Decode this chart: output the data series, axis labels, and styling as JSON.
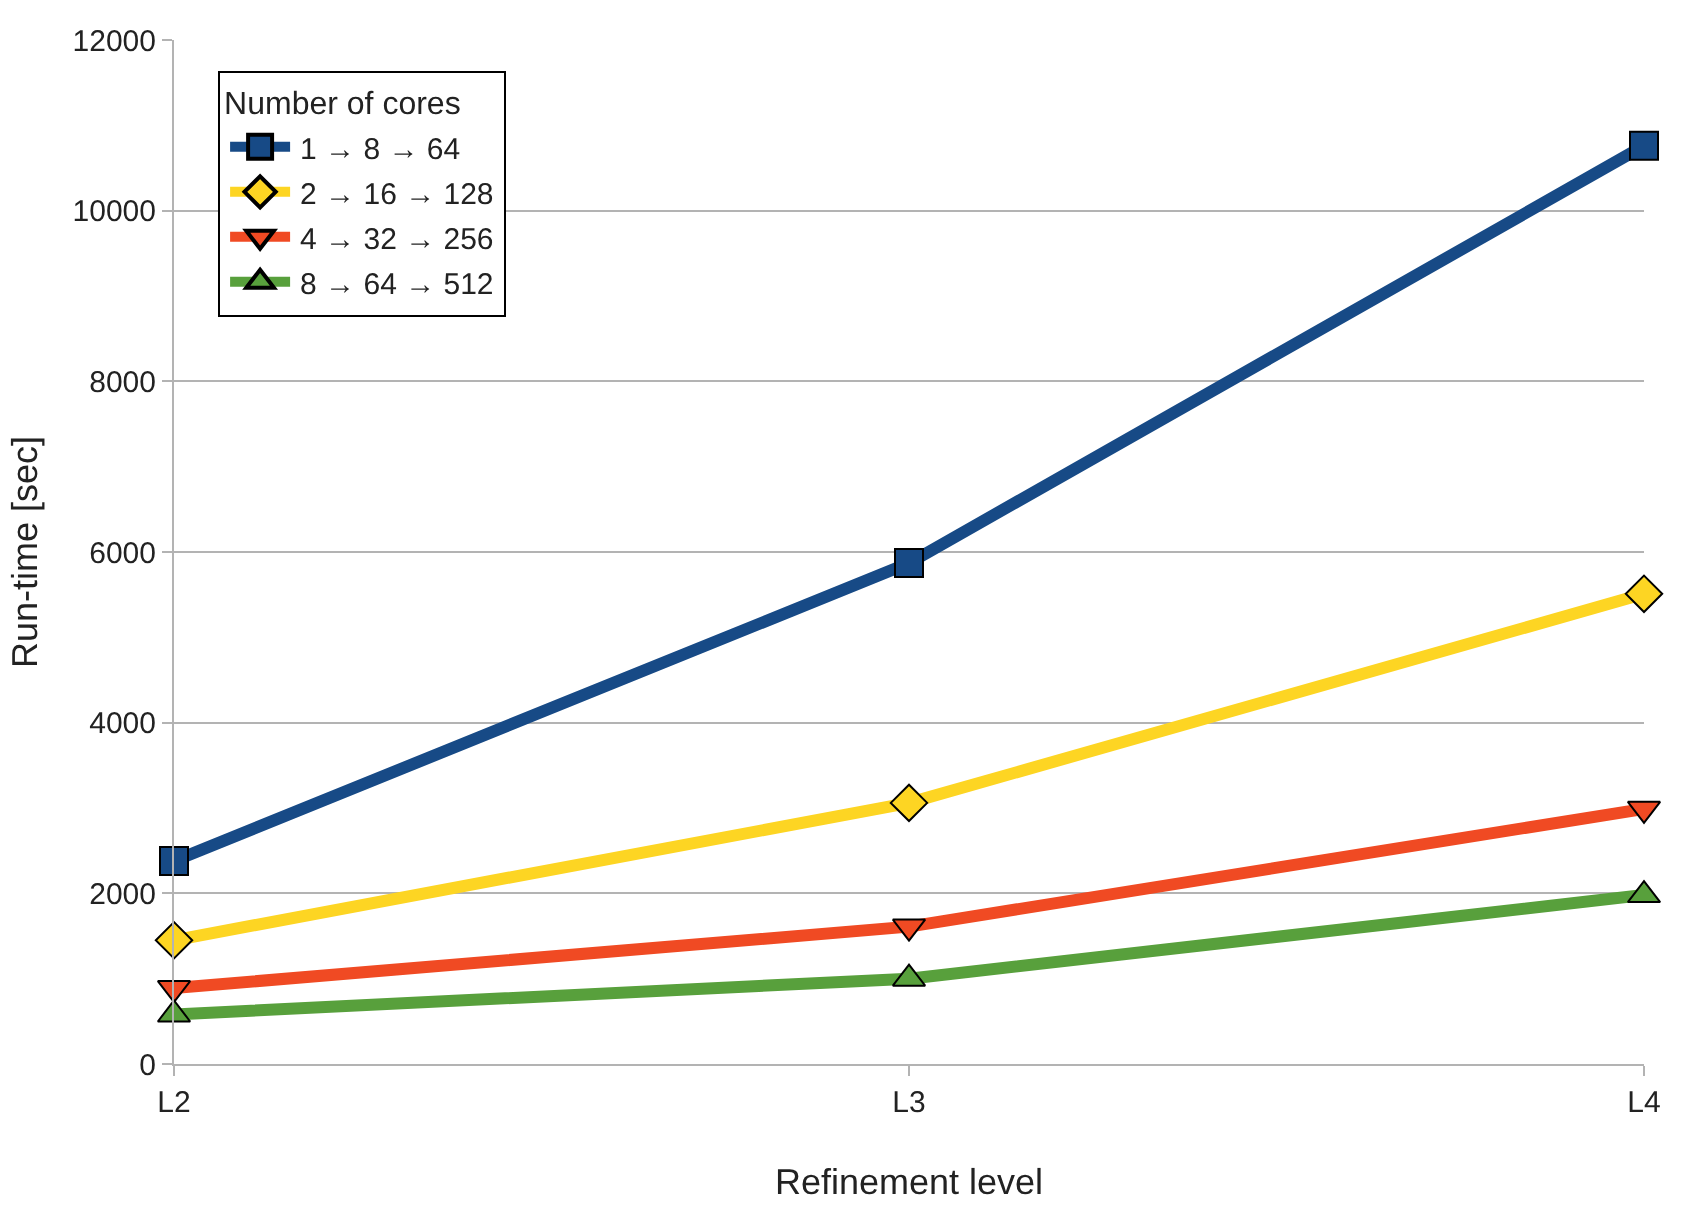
{
  "chart_data": {
    "type": "line",
    "xlabel": "Refinement level",
    "ylabel": "Run-time [sec]",
    "categories": [
      "L2",
      "L3",
      "L4"
    ],
    "ylim": [
      0,
      12000
    ],
    "yticks": [
      0,
      2000,
      4000,
      6000,
      8000,
      10000,
      12000
    ],
    "grid": "y",
    "legend": "top left",
    "legend_title": "Number of cores",
    "line_style": "solid",
    "series": [
      {
        "name": "1 → 8 → 64",
        "color": "#174a86",
        "marker": "square",
        "values": [
          2380,
          5870,
          10760
        ]
      },
      {
        "name": "2 → 16 → 128",
        "color": "#fdd523",
        "marker": "diamond",
        "values": [
          1450,
          3060,
          5510
        ]
      },
      {
        "name": "4 → 32 → 256",
        "color": "#f04a23",
        "marker": "triangle-down",
        "values": [
          890,
          1610,
          2990
        ]
      },
      {
        "name": "8 → 64 → 512",
        "color": "#58a03c",
        "marker": "triangle",
        "values": [
          580,
          1000,
          1980
        ]
      }
    ]
  }
}
